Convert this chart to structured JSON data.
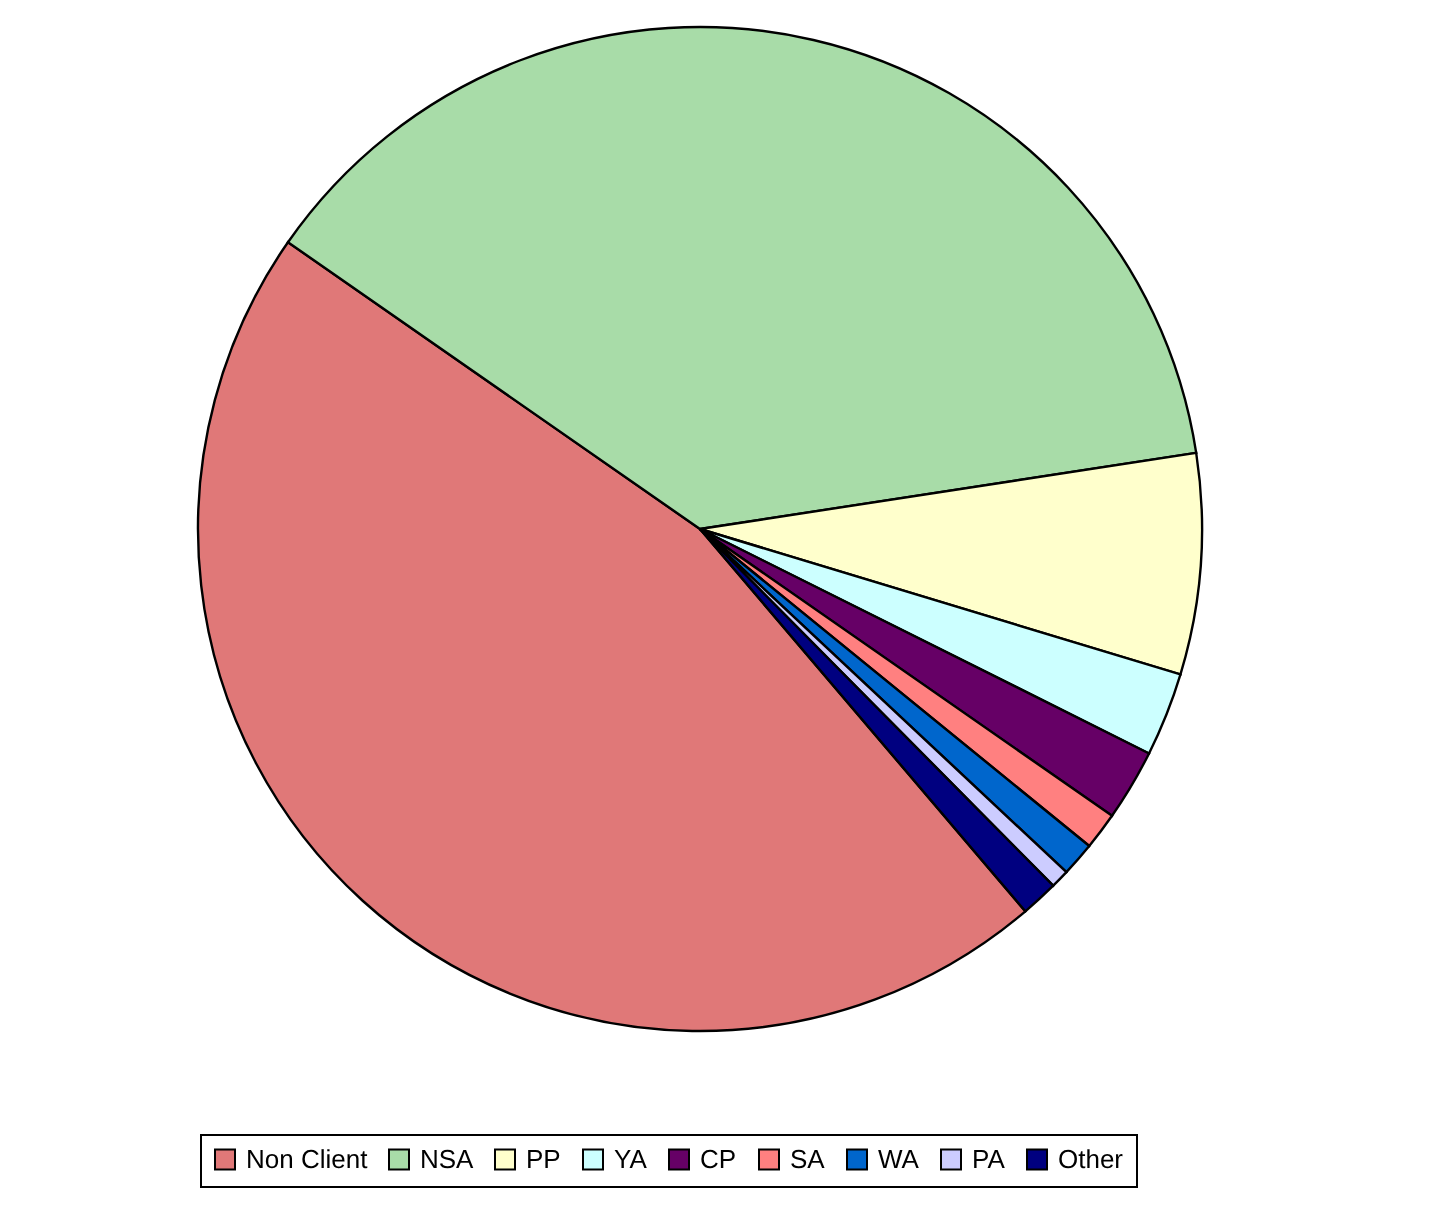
{
  "chart_data": {
    "type": "pie",
    "categories": [
      "Non Client",
      "NSA",
      "PP",
      "YA",
      "CP",
      "SA",
      "WA",
      "PA",
      "Other"
    ],
    "values": [
      45.9,
      37.9,
      7.1,
      2.7,
      2.3,
      1.2,
      1.1,
      0.6,
      1.2
    ],
    "colors": [
      "#e07878",
      "#a8dca8",
      "#ffffcc",
      "#ccffff",
      "#660066",
      "#ff8080",
      "#0066cc",
      "#ccccff",
      "#000080"
    ],
    "legend": "bottom"
  }
}
